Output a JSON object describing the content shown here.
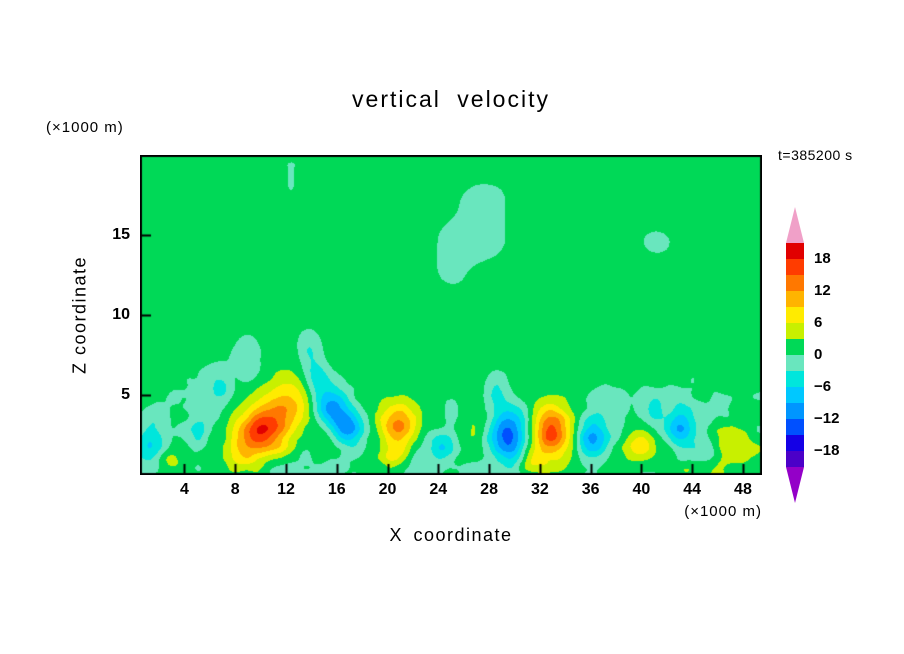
{
  "title": "vertical velocity",
  "timestamp": "t=385200 s",
  "axes": {
    "x_label": "X coordinate",
    "y_label": "Z coordinate",
    "x_unit": "(×1000 m)",
    "y_unit": "(×1000 m)"
  },
  "colorbar": {
    "labels": [
      "18",
      "12",
      "6",
      "0",
      "−6",
      "−12",
      "−18"
    ],
    "label_boundaries": [
      1,
      3,
      5,
      7,
      9,
      11,
      13
    ]
  },
  "chart_data": {
    "type": "heatmap",
    "title": "vertical velocity",
    "xlabel": "X coordinate (×1000 m)",
    "ylabel": "Z coordinate (×1000 m)",
    "time_label": "t=385200 s",
    "x_range": [
      0.5,
      49.5
    ],
    "z_range": [
      0,
      20
    ],
    "x_ticks": [
      4,
      8,
      12,
      16,
      20,
      24,
      28,
      32,
      36,
      40,
      44,
      48
    ],
    "z_ticks": [
      5,
      10,
      15
    ],
    "contour_interval": 3,
    "levels": [
      -21,
      -18,
      -15,
      -12,
      -9,
      -6,
      -3,
      0,
      3,
      6,
      9,
      12,
      15,
      18,
      21
    ],
    "palette": [
      "#9400c8",
      "#4b00c8",
      "#1400e6",
      "#0050ff",
      "#0096ff",
      "#00c8ff",
      "#00e6dc",
      "#69e6be",
      "#00d957",
      "#c8f000",
      "#ffeb00",
      "#ffb400",
      "#ff7800",
      "#ff3c00",
      "#e10000",
      "#f0a0c8"
    ],
    "colorbar_tick_values": [
      18,
      12,
      6,
      0,
      -6,
      -12,
      -18
    ],
    "background_mean": 1.25,
    "noise": {
      "large_amp": 1.5,
      "small_amp": 2.2,
      "small_depth": 8.5
    },
    "features_format": [
      "x_center",
      "z_center",
      "x_radius",
      "z_radius",
      "amplitude_m_per_s"
    ],
    "features": [
      [
        10.3,
        2.8,
        2.1,
        1.5,
        16
      ],
      [
        12.4,
        4.6,
        2.2,
        1.5,
        7
      ],
      [
        8.6,
        1.4,
        1.5,
        1.1,
        6
      ],
      [
        15.6,
        4.2,
        1.5,
        1.3,
        -12
      ],
      [
        16.9,
        2.9,
        1.3,
        1.1,
        -11
      ],
      [
        14.4,
        6.0,
        1.1,
        1.3,
        -6
      ],
      [
        13.8,
        7.8,
        0.9,
        1.1,
        -4
      ],
      [
        20.8,
        3.2,
        1.5,
        1.3,
        11
      ],
      [
        20.4,
        1.2,
        1.1,
        0.9,
        5
      ],
      [
        24.3,
        1.8,
        1.0,
        1.0,
        -6
      ],
      [
        25.1,
        4.1,
        0.9,
        0.9,
        -4
      ],
      [
        29.4,
        2.6,
        1.5,
        1.7,
        -15
      ],
      [
        28.5,
        5.2,
        1.0,
        1.0,
        -5
      ],
      [
        33.0,
        2.7,
        1.6,
        1.6,
        15
      ],
      [
        31.4,
        0.9,
        1.0,
        0.8,
        6
      ],
      [
        36.2,
        2.4,
        1.2,
        1.3,
        -11
      ],
      [
        36.7,
        4.7,
        0.9,
        0.9,
        -4
      ],
      [
        39.8,
        2.1,
        1.3,
        1.0,
        7
      ],
      [
        41.1,
        4.1,
        0.8,
        0.8,
        -4
      ],
      [
        43.0,
        2.9,
        1.1,
        1.5,
        -8
      ],
      [
        45.1,
        1.4,
        0.9,
        0.8,
        -4
      ],
      [
        47.4,
        1.8,
        1.7,
        1.2,
        6
      ],
      [
        1.3,
        2.2,
        1.2,
        1.5,
        -7
      ],
      [
        3.0,
        1.0,
        0.8,
        0.7,
        4
      ],
      [
        5.2,
        2.6,
        0.9,
        1.1,
        -5
      ],
      [
        6.9,
        5.6,
        0.8,
        1.0,
        -4
      ],
      [
        9.0,
        7.2,
        1.0,
        1.2,
        -4
      ]
    ]
  }
}
